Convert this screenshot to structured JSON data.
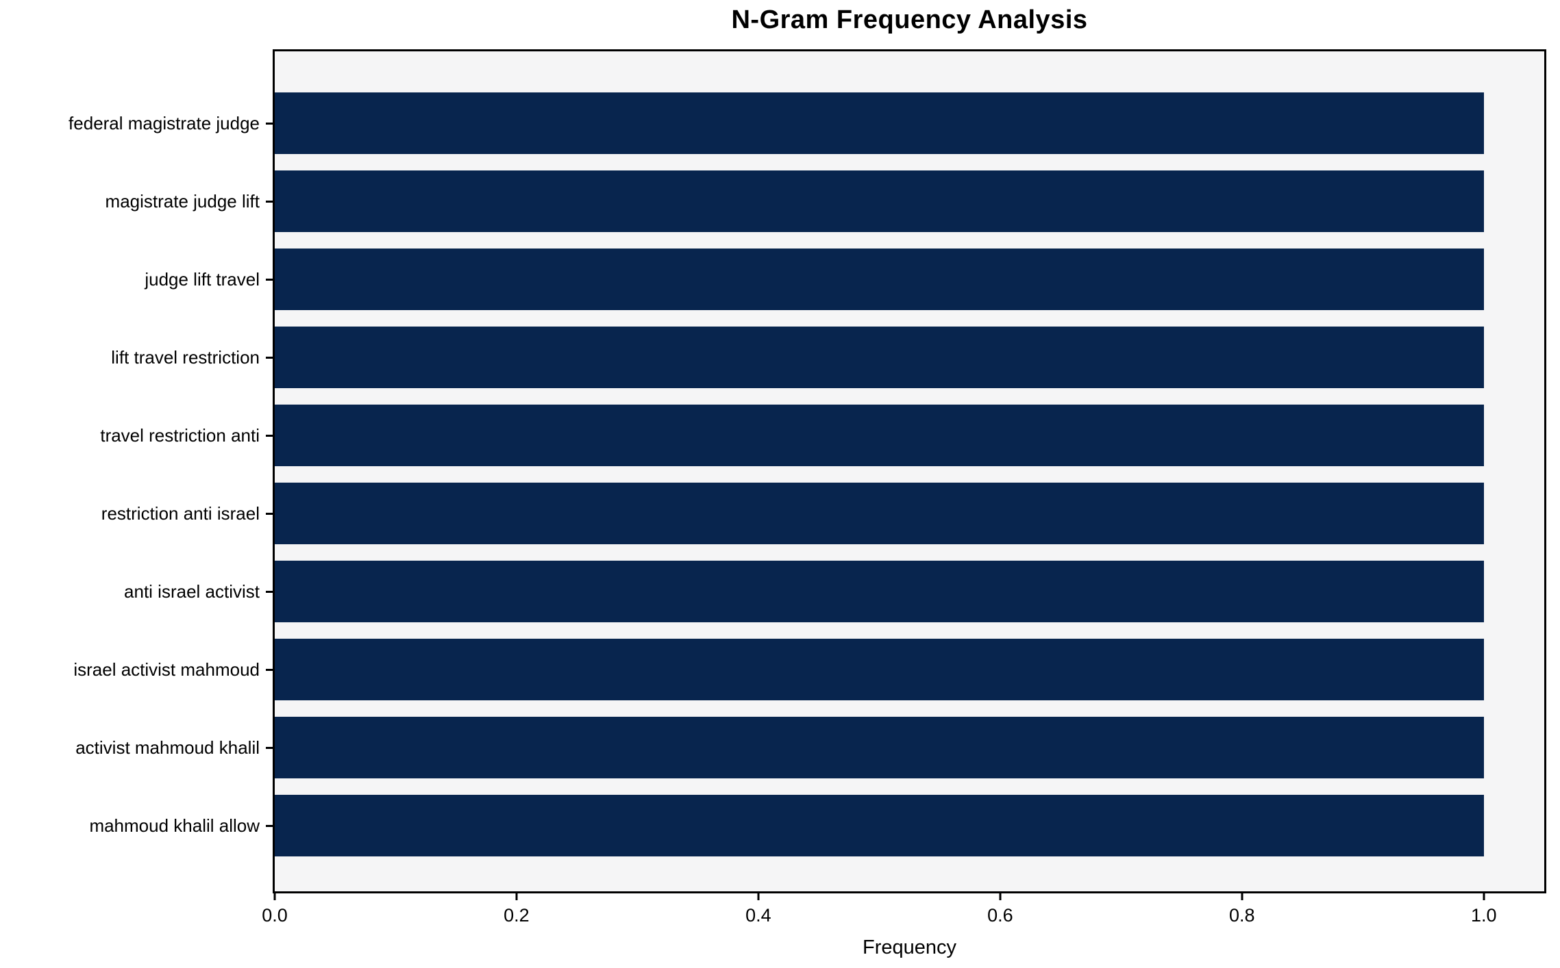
{
  "chart_data": {
    "type": "bar",
    "orientation": "horizontal",
    "title": "N-Gram Frequency Analysis",
    "xlabel": "Frequency",
    "ylabel": "",
    "categories": [
      "federal magistrate judge",
      "magistrate judge lift",
      "judge lift travel",
      "lift travel restriction",
      "travel restriction anti",
      "restriction anti israel",
      "anti israel activist",
      "israel activist mahmoud",
      "activist mahmoud khalil",
      "mahmoud khalil allow"
    ],
    "values": [
      1.0,
      1.0,
      1.0,
      1.0,
      1.0,
      1.0,
      1.0,
      1.0,
      1.0,
      1.0
    ],
    "xticks": [
      "0.0",
      "0.2",
      "0.4",
      "0.6",
      "0.8",
      "1.0"
    ],
    "xtick_values": [
      0.0,
      0.2,
      0.4,
      0.6,
      0.8,
      1.0
    ],
    "xlim": [
      0,
      1.05
    ],
    "grid": false,
    "legend": false,
    "colors": {
      "bar": "#08254e",
      "plot_background": "#f5f5f6",
      "figure_background": "#ffffff",
      "spine": "#000000",
      "text": "#000000"
    }
  }
}
